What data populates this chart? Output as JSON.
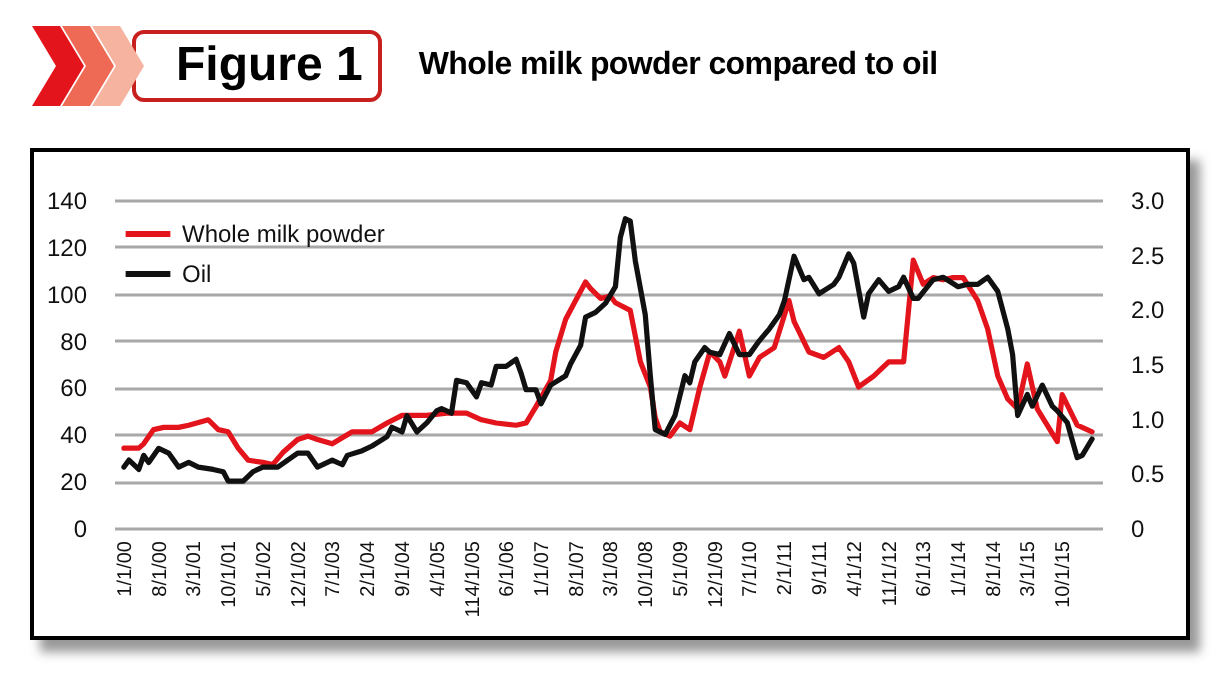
{
  "chart_data": {
    "type": "line",
    "title": "Figure 1",
    "subtitle": "Whole milk powder compared to oil",
    "xlim": [
      "1999-11",
      "2016-06"
    ],
    "xticks": [
      {
        "value": "2000-01-01",
        "label": "1/1/00"
      },
      {
        "value": "2000-08-01",
        "label": "8/1/00"
      },
      {
        "value": "2001-03-01",
        "label": "3/1/01"
      },
      {
        "value": "2001-10-01",
        "label": "10/1/01"
      },
      {
        "value": "2002-05-01",
        "label": "5/1/02"
      },
      {
        "value": "2002-12-01",
        "label": "12/1/02"
      },
      {
        "value": "2003-07-01",
        "label": "7/1/03"
      },
      {
        "value": "2004-02-01",
        "label": "2/1/04"
      },
      {
        "value": "2004-09-01",
        "label": "9/1/04"
      },
      {
        "value": "2005-04-01",
        "label": "4/1/05"
      },
      {
        "value": "2005-11-01",
        "label": "114/1/05"
      },
      {
        "value": "2006-06-01",
        "label": "6/1/06"
      },
      {
        "value": "2007-01-01",
        "label": "1/1/07"
      },
      {
        "value": "2007-08-01",
        "label": "8/1/07"
      },
      {
        "value": "2008-03-01",
        "label": "3/1/08"
      },
      {
        "value": "2008-10-01",
        "label": "10/1/08"
      },
      {
        "value": "2009-05-01",
        "label": "5/1/09"
      },
      {
        "value": "2009-12-01",
        "label": "12/1/09"
      },
      {
        "value": "2010-07-01",
        "label": "7/1/10"
      },
      {
        "value": "2011-02-01",
        "label": "2/1/11"
      },
      {
        "value": "2011-09-01",
        "label": "9/1/11"
      },
      {
        "value": "2012-04-01",
        "label": "4/1/12"
      },
      {
        "value": "2012-11-01",
        "label": "11/1/12"
      },
      {
        "value": "2013-06-01",
        "label": "6/1/13"
      },
      {
        "value": "2014-01-01",
        "label": "1/1/14"
      },
      {
        "value": "2014-08-01",
        "label": "8/1/14"
      },
      {
        "value": "2015-03-01",
        "label": "3/1/15"
      },
      {
        "value": "2015-10-01",
        "label": "10/1/15"
      }
    ],
    "ylim": [
      0,
      140
    ],
    "yticks": [
      0,
      20,
      40,
      60,
      80,
      100,
      120,
      140
    ],
    "y2lim": [
      0,
      3
    ],
    "y2ticks": [
      0,
      0.5,
      {
        "value": 1,
        "label": "1.0"
      },
      1.5,
      {
        "value": 2,
        "label": "2.0"
      },
      2.5,
      {
        "value": 3,
        "label": "3.0"
      }
    ],
    "grid": "y",
    "legend": "top left",
    "series": [
      {
        "name": "Whole milk powder",
        "color": "#e3141b",
        "axis": "y2",
        "x": [
          "2000-01",
          "2000-04",
          "2000-05",
          "2000-07",
          "2000-09",
          "2000-12",
          "2001-02",
          "2001-06",
          "2001-08",
          "2001-10",
          "2001-12",
          "2002-02",
          "2002-05",
          "2002-07",
          "2002-09",
          "2002-12",
          "2003-02",
          "2003-04",
          "2003-07",
          "2003-11",
          "2004-03",
          "2004-06",
          "2004-09",
          "2005-02",
          "2005-06",
          "2005-10",
          "2006-01",
          "2006-04",
          "2006-08",
          "2006-10",
          "2006-12",
          "2007-03",
          "2007-04",
          "2007-06",
          "2007-08",
          "2007-10",
          "2007-11",
          "2008-01",
          "2008-03",
          "2008-04",
          "2008-07",
          "2008-09",
          "2008-11",
          "2008-12",
          "2009-01",
          "2009-03",
          "2009-05",
          "2009-07",
          "2009-09",
          "2009-11",
          "2010-01",
          "2010-02",
          "2010-05",
          "2010-07",
          "2010-09",
          "2010-12",
          "2011-03",
          "2011-04",
          "2011-07",
          "2011-10",
          "2012-01",
          "2012-03",
          "2012-05",
          "2012-08",
          "2012-11",
          "2013-02",
          "2013-04",
          "2013-06",
          "2013-08",
          "2013-10",
          "2013-12",
          "2014-02",
          "2014-05",
          "2014-07",
          "2014-09",
          "2014-11",
          "2015-01",
          "2015-03",
          "2015-05",
          "2015-09",
          "2015-10",
          "2016-01",
          "2016-04"
        ],
        "values": [
          0.73,
          0.73,
          0.77,
          0.9,
          0.92,
          0.92,
          0.94,
          0.99,
          0.9,
          0.88,
          0.73,
          0.62,
          0.6,
          0.58,
          0.69,
          0.81,
          0.84,
          0.81,
          0.77,
          0.88,
          0.88,
          0.96,
          1.03,
          1.03,
          1.05,
          1.05,
          0.99,
          0.96,
          0.94,
          0.96,
          1.11,
          1.35,
          1.61,
          1.91,
          2.08,
          2.25,
          2.19,
          2.1,
          2.12,
          2.06,
          1.99,
          1.52,
          1.29,
          1.01,
          0.88,
          0.84,
          0.96,
          0.9,
          1.29,
          1.61,
          1.52,
          1.39,
          1.8,
          1.39,
          1.56,
          1.65,
          2.08,
          1.89,
          1.61,
          1.56,
          1.65,
          1.52,
          1.29,
          1.39,
          1.52,
          1.52,
          2.45,
          2.23,
          2.29,
          2.27,
          2.29,
          2.29,
          2.08,
          1.82,
          1.39,
          1.18,
          1.09,
          1.5,
          1.09,
          0.79,
          1.22,
          0.94,
          0.88
        ]
      },
      {
        "name": "Oil",
        "color": "#111111",
        "x": [
          "2000-01",
          "2000-02",
          "2000-04",
          "2000-05",
          "2000-06",
          "2000-08",
          "2000-10",
          "2000-12",
          "2001-02",
          "2001-04",
          "2001-07",
          "2001-09",
          "2001-10",
          "2002-01",
          "2002-03",
          "2002-05",
          "2002-08",
          "2002-12",
          "2003-02",
          "2003-04",
          "2003-07",
          "2003-09",
          "2003-10",
          "2004-01",
          "2004-03",
          "2004-06",
          "2004-07",
          "2004-09",
          "2004-10",
          "2004-12",
          "2005-02",
          "2005-04",
          "2005-05",
          "2005-07",
          "2005-08",
          "2005-10",
          "2005-12",
          "2006-01",
          "2006-03",
          "2006-04",
          "2006-06",
          "2006-08",
          "2006-09",
          "2006-10",
          "2006-12",
          "2007-01",
          "2007-03",
          "2007-06",
          "2007-07",
          "2007-09",
          "2007-10",
          "2007-12",
          "2008-02",
          "2008-04",
          "2008-05",
          "2008-06",
          "2008-07",
          "2008-08",
          "2008-10",
          "2008-11",
          "2008-12",
          "2009-02",
          "2009-04",
          "2009-06",
          "2009-07",
          "2009-08",
          "2009-10",
          "2009-11",
          "2010-01",
          "2010-03",
          "2010-05",
          "2010-07",
          "2010-09",
          "2010-11",
          "2011-01",
          "2011-02",
          "2011-04",
          "2011-06",
          "2011-07",
          "2011-09",
          "2011-12",
          "2012-01",
          "2012-03",
          "2012-04",
          "2012-06",
          "2012-07",
          "2012-09",
          "2012-11",
          "2013-01",
          "2013-02",
          "2013-04",
          "2013-05",
          "2013-08",
          "2013-10",
          "2014-01",
          "2014-03",
          "2014-05",
          "2014-07",
          "2014-09",
          "2014-11",
          "2014-12",
          "2015-01",
          "2015-03",
          "2015-04",
          "2015-06",
          "2015-08",
          "2015-09",
          "2015-11",
          "2016-01",
          "2016-02",
          "2016-04"
        ],
        "values": [
          26,
          29,
          25,
          31,
          28,
          34,
          32,
          26,
          28,
          26,
          25,
          24,
          20,
          20,
          24,
          26,
          26,
          32,
          32,
          26,
          29,
          27,
          31,
          33,
          35,
          39,
          43,
          41,
          48,
          41,
          45,
          50,
          51,
          49,
          63,
          62,
          56,
          62,
          61,
          69,
          69,
          72,
          66,
          59,
          59,
          53,
          61,
          65,
          70,
          78,
          90,
          92,
          96,
          103,
          124,
          132,
          131,
          114,
          91,
          65,
          42,
          40,
          48,
          65,
          62,
          71,
          77,
          75,
          74,
          83,
          74,
          74,
          80,
          85,
          91,
          97,
          116,
          106,
          107,
          100,
          104,
          107,
          117,
          113,
          90,
          100,
          106,
          101,
          103,
          107,
          98,
          98,
          106,
          107,
          103,
          104,
          104,
          107,
          101,
          85,
          74,
          48,
          57,
          52,
          61,
          52,
          50,
          45,
          30,
          31,
          38
        ]
      }
    ]
  }
}
